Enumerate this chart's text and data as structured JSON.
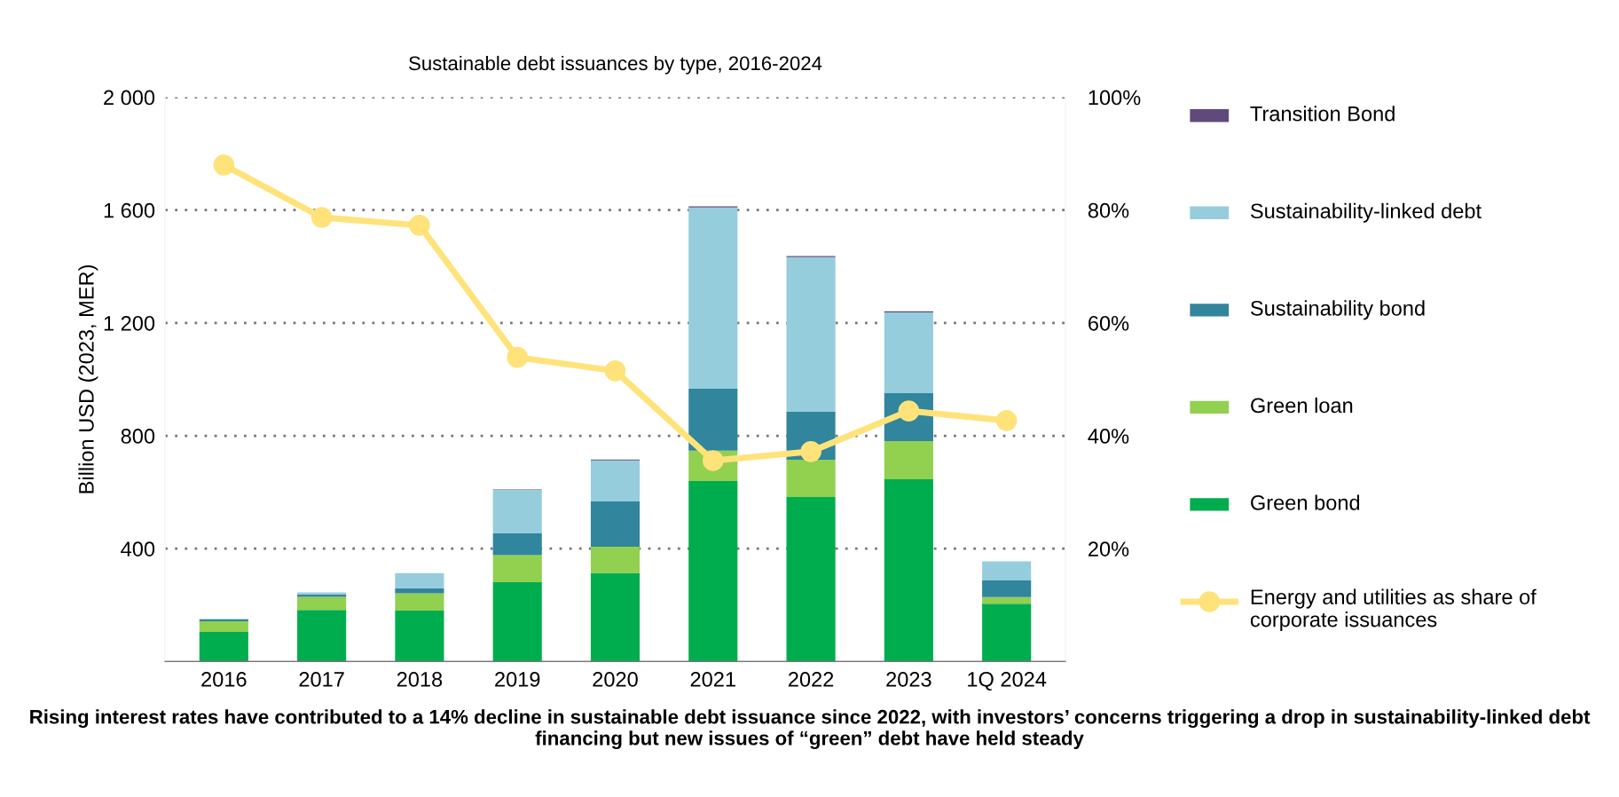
{
  "chart_data": {
    "type": "bar",
    "title": "Sustainable debt issuances by type, 2016-2024",
    "ylabel": "Billion USD (2023, MER)",
    "categories": [
      "2016",
      "2017",
      "2018",
      "2019",
      "2020",
      "2021",
      "2022",
      "2023",
      "1Q 2024"
    ],
    "stacked": true,
    "series": [
      {
        "name": "Green bond",
        "color": "#00ad4e",
        "values": [
          105,
          183,
          180,
          281,
          314,
          640,
          583,
          646,
          205
        ]
      },
      {
        "name": "Green loan",
        "color": "#92d050",
        "values": [
          38,
          46,
          62,
          96,
          93,
          107,
          132,
          135,
          23
        ]
      },
      {
        "name": "Sustainability bond",
        "color": "#31859c",
        "values": [
          6,
          9,
          18,
          77,
          160,
          220,
          170,
          170,
          59
        ]
      },
      {
        "name": "Sustainability-linked debt",
        "color": "#96cddd",
        "values": [
          2,
          7,
          53,
          154,
          146,
          642,
          548,
          286,
          68
        ]
      },
      {
        "name": "Transition Bond",
        "color": "#604a7b",
        "values": [
          0,
          0,
          0,
          2,
          3,
          4,
          4,
          4,
          0
        ]
      },
      {
        "name": "Energy and utilities as share of corporate issuances",
        "type": "line",
        "axis": "y2",
        "color": "#ffe37a",
        "values": [
          88,
          78.7,
          77.3,
          53.9,
          51.5,
          35.6,
          37.2,
          44.4,
          42.7
        ]
      }
    ],
    "ylim": [
      0,
      2000
    ],
    "yticks": [
      400,
      800,
      {
        "value": 1200,
        "label": "1 200"
      },
      {
        "value": 1600,
        "label": "1 600"
      },
      {
        "value": 2000,
        "label": "2 000"
      }
    ],
    "y2lim": [
      0,
      100
    ],
    "y2ticks": [
      {
        "value": 20,
        "label": "20%"
      },
      {
        "value": 40,
        "label": "40%"
      },
      {
        "value": 60,
        "label": "60%"
      },
      {
        "value": 80,
        "label": "80%"
      },
      {
        "value": 100,
        "label": "100%"
      }
    ],
    "grid": "y",
    "legend": "right",
    "marker": "circle",
    "line_style": "solid",
    "annotations": [
      "Rising interest rates have contributed to a 14% decline in sustainable debt issuance since 2022, with investors’ concerns triggering a drop in sustainability-linked debt financing but new issues of “green” debt have held steady"
    ]
  }
}
